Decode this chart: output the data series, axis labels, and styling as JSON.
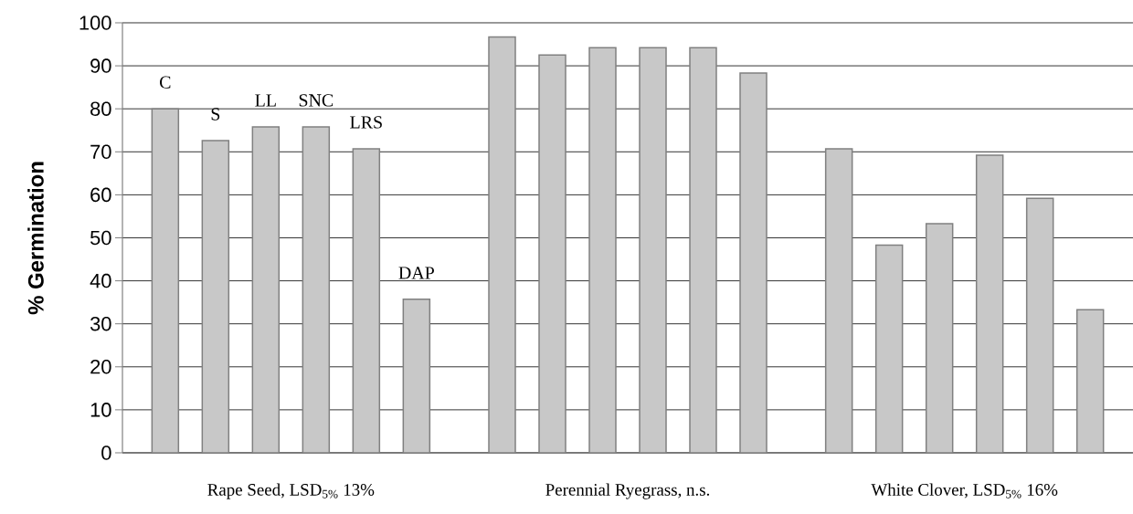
{
  "chart_data": {
    "type": "bar",
    "ylabel": "% Germination",
    "categories": [
      "Rape Seed, LSD$_{5%}$ 13%",
      "Perennial Ryegrass,  n.s.",
      "White Clover, LSD$_{5%}$ 16%"
    ],
    "series": [
      {
        "name": "C",
        "color": "#c8c8c8",
        "values": [
          80,
          96.7,
          70.7
        ]
      },
      {
        "name": "S",
        "color": "#c8c8c8",
        "values": [
          72.6,
          92.5,
          48.3
        ]
      },
      {
        "name": "LL",
        "color": "#c8c8c8",
        "values": [
          75.8,
          94.2,
          53.3
        ]
      },
      {
        "name": "SNC",
        "color": "#c8c8c8",
        "values": [
          75.8,
          94.2,
          69.2
        ]
      },
      {
        "name": "LRS",
        "color": "#c8c8c8",
        "values": [
          70.7,
          94.2,
          59.2
        ]
      },
      {
        "name": "DAP",
        "color": "#c8c8c8",
        "values": [
          35.7,
          88.3,
          33.3
        ]
      }
    ],
    "ylim": [
      0,
      100
    ],
    "yticks": [
      0,
      10,
      20,
      30,
      40,
      50,
      60,
      70,
      80,
      90,
      100
    ],
    "grid": "y"
  }
}
